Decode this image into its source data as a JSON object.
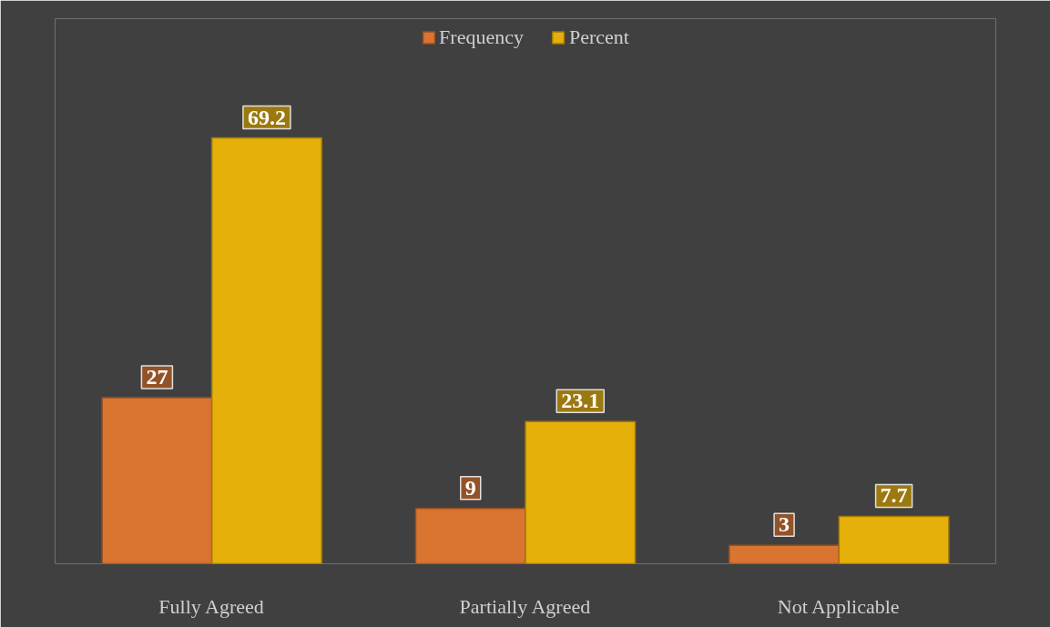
{
  "chart_data": {
    "type": "bar",
    "categories": [
      "Fully Agreed",
      "Partially Agreed",
      "Not Applicable"
    ],
    "series": [
      {
        "name": "Frequency",
        "color": "#d97431",
        "values": [
          27,
          9,
          3
        ]
      },
      {
        "name": "Percent",
        "color": "#e6b00a",
        "values": [
          69.2,
          23.1,
          7.7
        ]
      }
    ],
    "data_labels": true,
    "legend": "top"
  }
}
